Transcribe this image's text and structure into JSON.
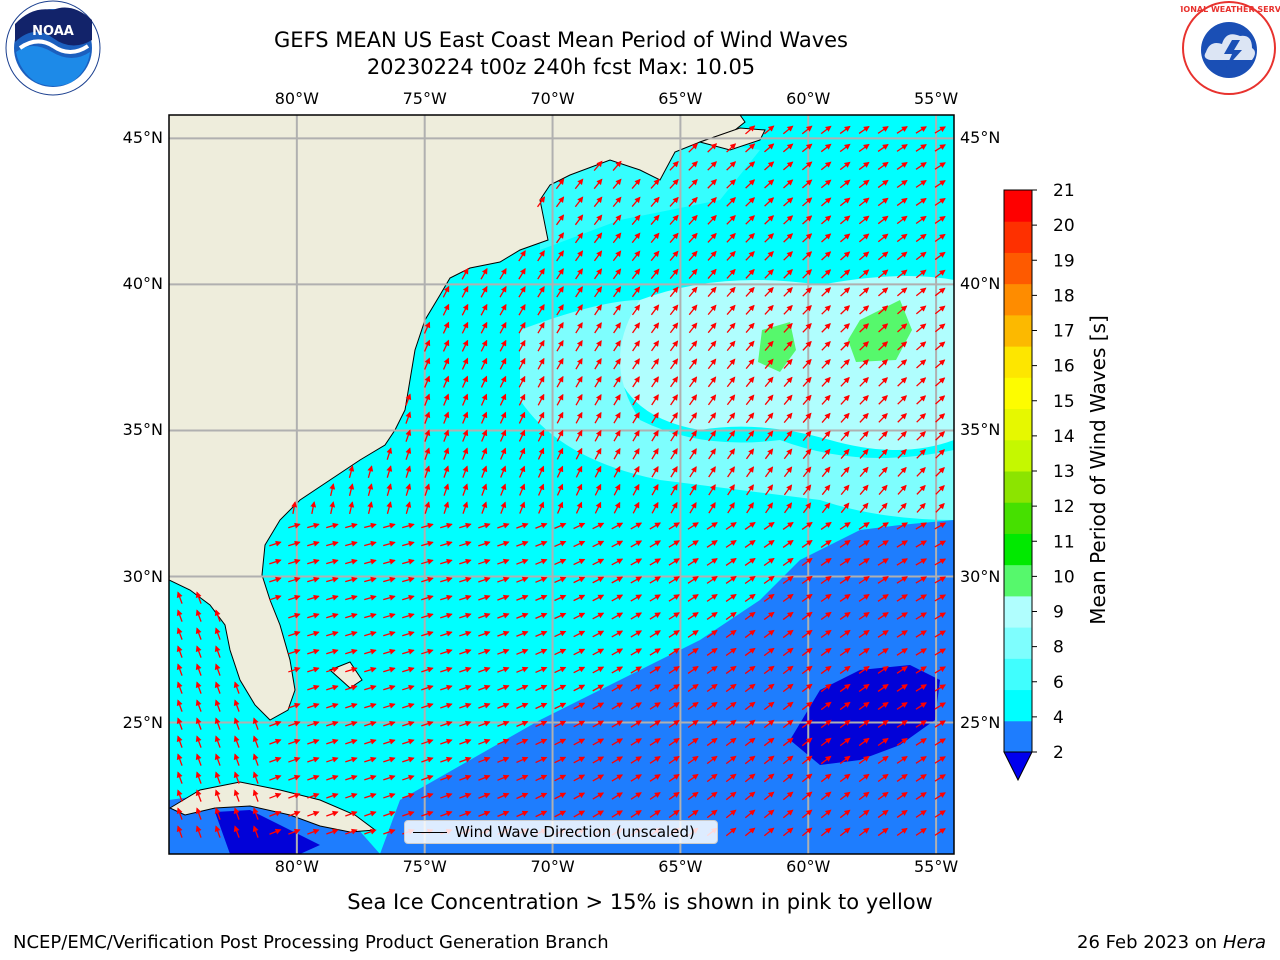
{
  "header": {
    "title_line1": "GEFS MEAN US East Coast Mean Period of Wind Waves",
    "title_line2": "20230224 t00z 240h fcst   Max: 10.05"
  },
  "logos": {
    "left": {
      "name": "noaa-logo",
      "text": "NOAA"
    },
    "right": {
      "name": "nws-logo",
      "text": "NATIONAL WEATHER SERVICE"
    }
  },
  "map": {
    "lon_ticks_top": [
      "80°W",
      "75°W",
      "70°W",
      "65°W",
      "60°W",
      "55°W"
    ],
    "lon_ticks_bottom": [
      "80°W",
      "75°W",
      "70°W",
      "65°W",
      "60°W",
      "55°W"
    ],
    "lat_ticks_left": [
      "45°N",
      "40°N",
      "35°N",
      "30°N",
      "25°N"
    ],
    "lat_ticks_right": [
      "45°N",
      "40°N",
      "35°N",
      "30°N",
      "25°N"
    ],
    "lon_range": [
      -85,
      -54.3
    ],
    "lat_range": [
      20.5,
      45.8
    ],
    "colors": {
      "land": "#eeeddc",
      "shelf": "#3bfefe",
      "period_2_4": "#1e7dfe",
      "period_below_2": "#0202d8",
      "period_6_8": "#7efefe",
      "period_8_9": "#b0fefe",
      "period_9_10": "#56f86c",
      "arrow": "#ff0000",
      "grid": "#b0b0b0"
    },
    "legend_label": "Wind Wave Direction (unscaled)",
    "ice_note": "Sea Ice Concentration > 15% is shown in pink to yellow"
  },
  "colorbar": {
    "label": "Mean Period of Wind Waves [s]",
    "tick_labels": [
      "21",
      "20",
      "19",
      "18",
      "17",
      "16",
      "15",
      "14",
      "13",
      "12",
      "11",
      "10",
      "9",
      "8",
      "6",
      "4",
      "2"
    ],
    "colors_bottom_to_top": [
      "#1e7dfe",
      "#00ffff",
      "#40fefe",
      "#7efefe",
      "#b0fefe",
      "#56f86c",
      "#01e900",
      "#46e000",
      "#8ce400",
      "#c5f800",
      "#e6f800",
      "#fdfc00",
      "#fde600",
      "#fcb900",
      "#fe8c00",
      "#fe5a00",
      "#fe3000",
      "#fe0000"
    ],
    "extend_color": "#0000ee"
  },
  "footer": {
    "left": "NCEP/EMC/Verification Post Processing Product Generation Branch",
    "right_date": "26 Feb 2023 on",
    "right_host": "Hera"
  }
}
